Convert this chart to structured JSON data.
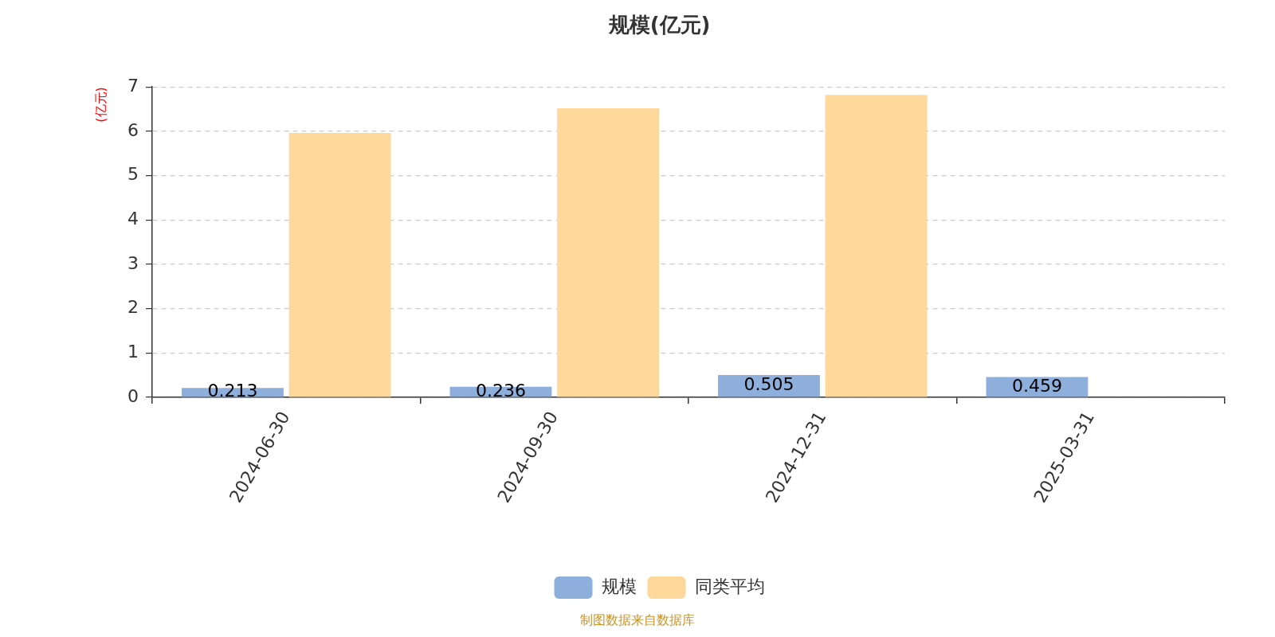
{
  "chart_data": {
    "type": "bar",
    "title": "规模(亿元)",
    "ylabel": "(亿元)",
    "categories": [
      "2024-06-30",
      "2024-09-30",
      "2024-12-31",
      "2025-03-31"
    ],
    "series": [
      {
        "name": "规模",
        "color": "#8eaedb",
        "values": [
          0.213,
          0.236,
          0.505,
          0.459
        ],
        "value_labels": [
          "0.213",
          "0.236",
          "0.505",
          "0.459"
        ]
      },
      {
        "name": "同类平均",
        "color": "#fdd89a",
        "values": [
          5.96,
          6.52,
          6.82,
          null
        ]
      }
    ],
    "ylim": [
      0,
      7
    ],
    "yticks": [
      0,
      1,
      2,
      3,
      4,
      5,
      6,
      7
    ],
    "grid": "y",
    "legend": "bottom",
    "annotations": [
      "制图数据来自数据库"
    ]
  }
}
